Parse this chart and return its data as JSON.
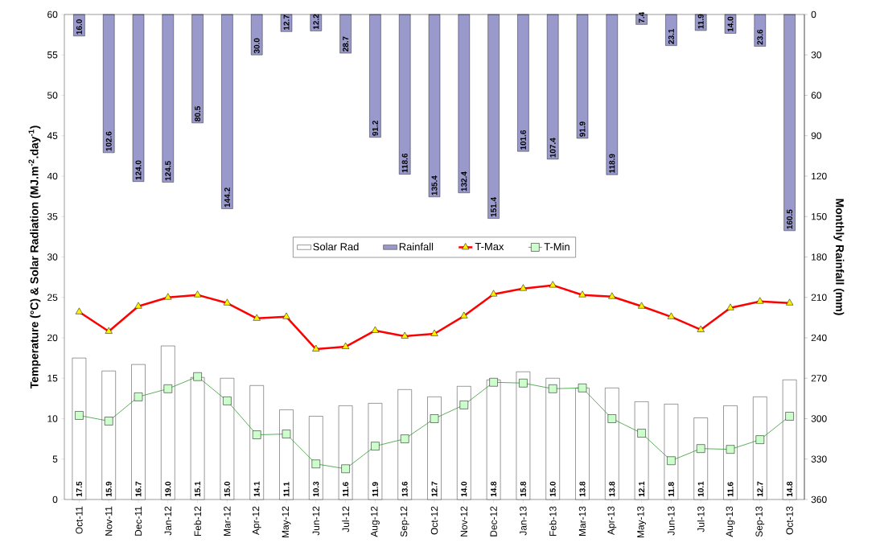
{
  "chart_data": {
    "type": "bar",
    "categories": [
      "Oct-11",
      "Nov-11",
      "Dec-11",
      "Jan-12",
      "Feb-12",
      "Mar-12",
      "Apr-12",
      "May-12",
      "Jun-12",
      "Jul-12",
      "Aug-12",
      "Sep-12",
      "Oct-12",
      "Nov-12",
      "Dec-12",
      "Jan-13",
      "Feb-13",
      "Mar-13",
      "Apr-13",
      "May-13",
      "Jun-13",
      "Jul-13",
      "Aug-13",
      "Sep-13",
      "Oct-13"
    ],
    "ylabel": "Temperature (°C)  & Solar Radiation (MJ.m$^{-2}$.day$^{-1}$)",
    "y2label": "Monthly Rainfall (mm)",
    "ylim": [
      0,
      60
    ],
    "yticks": [
      0,
      5,
      10,
      15,
      20,
      25,
      30,
      35,
      40,
      45,
      50,
      55,
      60
    ],
    "y2lim": [
      360,
      0
    ],
    "y2ticks": [
      0,
      30,
      60,
      90,
      120,
      150,
      180,
      210,
      240,
      270,
      300,
      330,
      360
    ],
    "legend": "center",
    "series": [
      {
        "name": "Solar Rad",
        "color": "#ffffff",
        "values": [
          17.5,
          15.9,
          16.7,
          19.0,
          15.1,
          15.0,
          14.1,
          11.1,
          10.3,
          11.6,
          11.9,
          13.6,
          12.7,
          14.0,
          14.8,
          15.8,
          15.0,
          13.8,
          13.8,
          12.1,
          11.8,
          10.1,
          11.6,
          12.7,
          14.8
        ],
        "value_labels": [
          "17.5",
          "15.9",
          "16.7",
          "19.0",
          "15.1",
          "15.0",
          "14.1",
          "11.1",
          "10.3",
          "11.6",
          "11.9",
          "13.6",
          "12.7",
          "14.0",
          "14.8",
          "15.8",
          "15.0",
          "13.8",
          "13.8",
          "12.1",
          "11.8",
          "10.1",
          "11.6",
          "12.7",
          "14.8"
        ]
      },
      {
        "name": "Rainfall",
        "axis": "y2",
        "color": "#9999cc",
        "values": [
          16.0,
          102.6,
          124.0,
          124.5,
          80.5,
          144.2,
          30.0,
          12.7,
          12.2,
          28.7,
          91.2,
          118.6,
          135.4,
          132.4,
          151.4,
          101.6,
          107.4,
          91.9,
          118.9,
          7.4,
          23.1,
          11.9,
          14.0,
          23.6,
          160.5
        ],
        "value_labels": [
          "16.0",
          "102.6",
          "124.0",
          "124.5",
          "80.5",
          "144.2",
          "30.0",
          "12.7",
          "12.2",
          "28.7",
          "91.2",
          "118.6",
          "135.4",
          "132.4",
          "151.4",
          "101.6",
          "107.4",
          "91.9",
          "118.9",
          "7.4",
          "23.1",
          "11.9",
          "14.0",
          "23.6",
          "160.5"
        ]
      },
      {
        "name": "T-Max",
        "type": "line",
        "color": "#ff0000",
        "marker": "triangle",
        "values": [
          23.2,
          20.8,
          23.9,
          25.0,
          25.3,
          24.3,
          22.4,
          22.6,
          18.6,
          18.9,
          20.9,
          20.2,
          20.5,
          22.7,
          25.4,
          26.1,
          26.5,
          25.3,
          25.1,
          23.9,
          22.6,
          21.0,
          23.7,
          24.5,
          24.3
        ]
      },
      {
        "name": "T-Min",
        "type": "line",
        "color": "#339933",
        "marker": "square",
        "values": [
          10.4,
          9.7,
          12.7,
          13.7,
          15.2,
          12.2,
          8.0,
          8.1,
          4.4,
          3.8,
          6.6,
          7.5,
          10.0,
          11.7,
          14.5,
          14.4,
          13.7,
          13.8,
          10.0,
          8.2,
          4.8,
          6.3,
          6.2,
          7.4,
          10.3
        ]
      }
    ]
  }
}
